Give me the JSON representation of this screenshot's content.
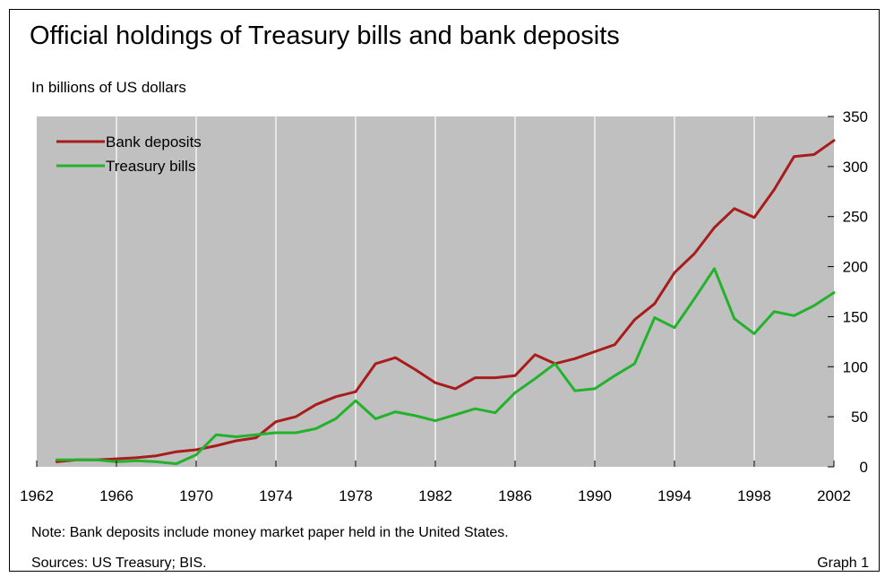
{
  "title": "Official holdings of Treasury bills and bank deposits",
  "subtitle": "In billions of US dollars",
  "note": "Note: Bank deposits include money market paper held in the United States.",
  "sources": "Sources: US Treasury; BIS.",
  "graph_label": "Graph 1",
  "colors": {
    "plot_background": "#c0c0c0",
    "grid": "#ffffff",
    "bank_deposits": "#a81c1c",
    "treasury_bills": "#22b22c"
  },
  "chart_data": {
    "type": "line",
    "title": "",
    "xlabel": "",
    "ylabel": "",
    "xlim": [
      1962,
      2002
    ],
    "ylim": [
      0,
      350
    ],
    "x_ticks": [
      1962,
      1966,
      1970,
      1974,
      1978,
      1982,
      1986,
      1990,
      1994,
      1998,
      2002
    ],
    "y_ticks": [
      0,
      50,
      100,
      150,
      200,
      250,
      300,
      350
    ],
    "y_axis_side": "right",
    "grid": "vertical",
    "legend_position": "top-left",
    "x": [
      1963,
      1964,
      1965,
      1966,
      1967,
      1968,
      1969,
      1970,
      1971,
      1972,
      1973,
      1974,
      1975,
      1976,
      1977,
      1978,
      1979,
      1980,
      1981,
      1982,
      1983,
      1984,
      1985,
      1986,
      1987,
      1988,
      1989,
      1990,
      1991,
      1992,
      1993,
      1994,
      1995,
      1996,
      1997,
      1998,
      1999,
      2000,
      2001,
      2002
    ],
    "series": [
      {
        "name": "Bank deposits",
        "color": "#a81c1c",
        "values": [
          5,
          7,
          7,
          8,
          9,
          11,
          15,
          17,
          21,
          26,
          29,
          45,
          50,
          62,
          70,
          75,
          103,
          109,
          97,
          84,
          78,
          89,
          89,
          91,
          112,
          103,
          108,
          115,
          122,
          147,
          163,
          194,
          213,
          239,
          258,
          249,
          277,
          310,
          312,
          326
        ]
      },
      {
        "name": "Treasury bills",
        "color": "#22b22c",
        "values": [
          7,
          7,
          7,
          5,
          6,
          5,
          3,
          12,
          32,
          30,
          32,
          34,
          34,
          38,
          48,
          66,
          48,
          55,
          51,
          46,
          52,
          58,
          54,
          74,
          88,
          103,
          76,
          78,
          91,
          103,
          149,
          139,
          168,
          198,
          148,
          133,
          155,
          151,
          161,
          174
        ]
      }
    ]
  }
}
